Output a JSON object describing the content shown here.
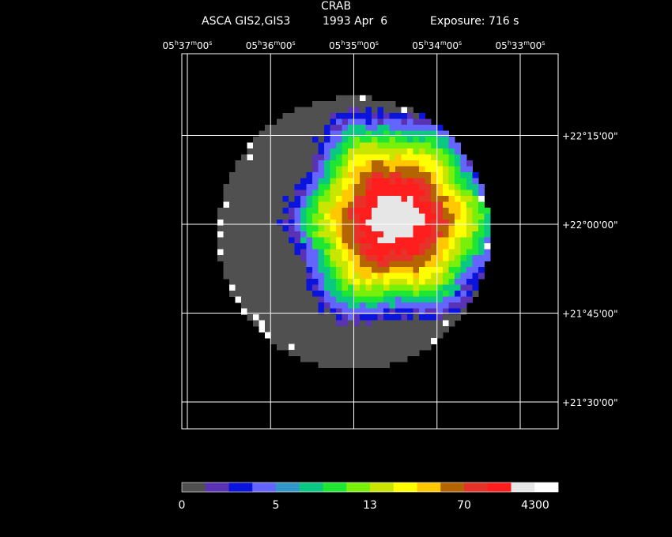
{
  "title": "CRAB",
  "subtitle": {
    "instrument": "ASCA GIS2,GIS3",
    "date": "1993 Apr  6",
    "exposure": "Exposure: 716 s"
  },
  "chart_data": {
    "type": "heatmap",
    "title": "CRAB",
    "subtitle": "ASCA GIS2,GIS3    1993 Apr  6    Exposure: 716 s",
    "grid": true,
    "ra_ticks": [
      {
        "h": "05",
        "m": "37",
        "s": "00"
      },
      {
        "h": "05",
        "m": "36",
        "s": "00"
      },
      {
        "h": "05",
        "m": "35",
        "s": "00"
      },
      {
        "h": "05",
        "m": "34",
        "s": "00"
      },
      {
        "h": "05",
        "m": "33",
        "s": "00"
      }
    ],
    "dec_ticks": [
      "+22°15'00\"",
      "+22°00'00\"",
      "+21°45'00\"",
      "+21°30'00\""
    ],
    "image": {
      "source_center": {
        "ra_min": 34.5,
        "dec_arcmin": 1
      },
      "core_radius_arcmin": 4,
      "field_center": {
        "ra_min": 35.0,
        "dec_arcmin": -1.5
      },
      "field_radius_arcmin": 23
    },
    "colorbar": {
      "colors": [
        "#505050",
        "#5a32b4",
        "#0a14dc",
        "#6464ff",
        "#3296c8",
        "#0ac882",
        "#1ee632",
        "#78f00a",
        "#c8e600",
        "#ffff00",
        "#ffc800",
        "#b46400",
        "#e63228",
        "#ff1e1e",
        "#e6e6e6",
        "#ffffff"
      ],
      "tick_labels": [
        "0",
        "5",
        "13",
        "70",
        "4300"
      ]
    }
  }
}
